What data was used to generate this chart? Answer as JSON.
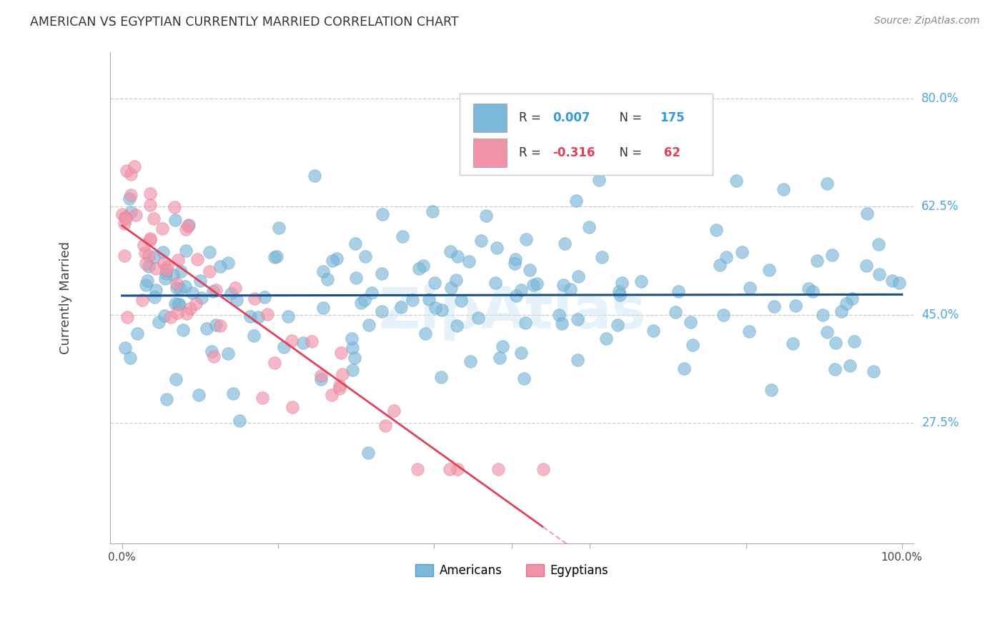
{
  "title": "AMERICAN VS EGYPTIAN CURRENTLY MARRIED CORRELATION CHART",
  "source": "Source: ZipAtlas.com",
  "ylabel": "Currently Married",
  "ytick_labels": [
    "80.0%",
    "62.5%",
    "45.0%",
    "27.5%"
  ],
  "ytick_values": [
    0.8,
    0.625,
    0.45,
    0.275
  ],
  "american_color": "#7bb8d9",
  "egyptian_color": "#f093a8",
  "american_edge_color": "#5a9ec0",
  "egyptian_edge_color": "#e07090",
  "trendline_american_color": "#1a4f8a",
  "trendline_egyptian_solid_color": "#e0405a",
  "trendline_egyptian_dash_color": "#f0a0b0",
  "watermark": "ZipAtlas",
  "xmin": 0.0,
  "xmax": 1.0,
  "ymin": 0.08,
  "ymax": 0.875,
  "american_R": 0.007,
  "american_N": 175,
  "egyptian_R": -0.316,
  "egyptian_N": 62,
  "legend_r1": "0.007",
  "legend_n1": "175",
  "legend_r2": "-0.316",
  "legend_n2": "62"
}
